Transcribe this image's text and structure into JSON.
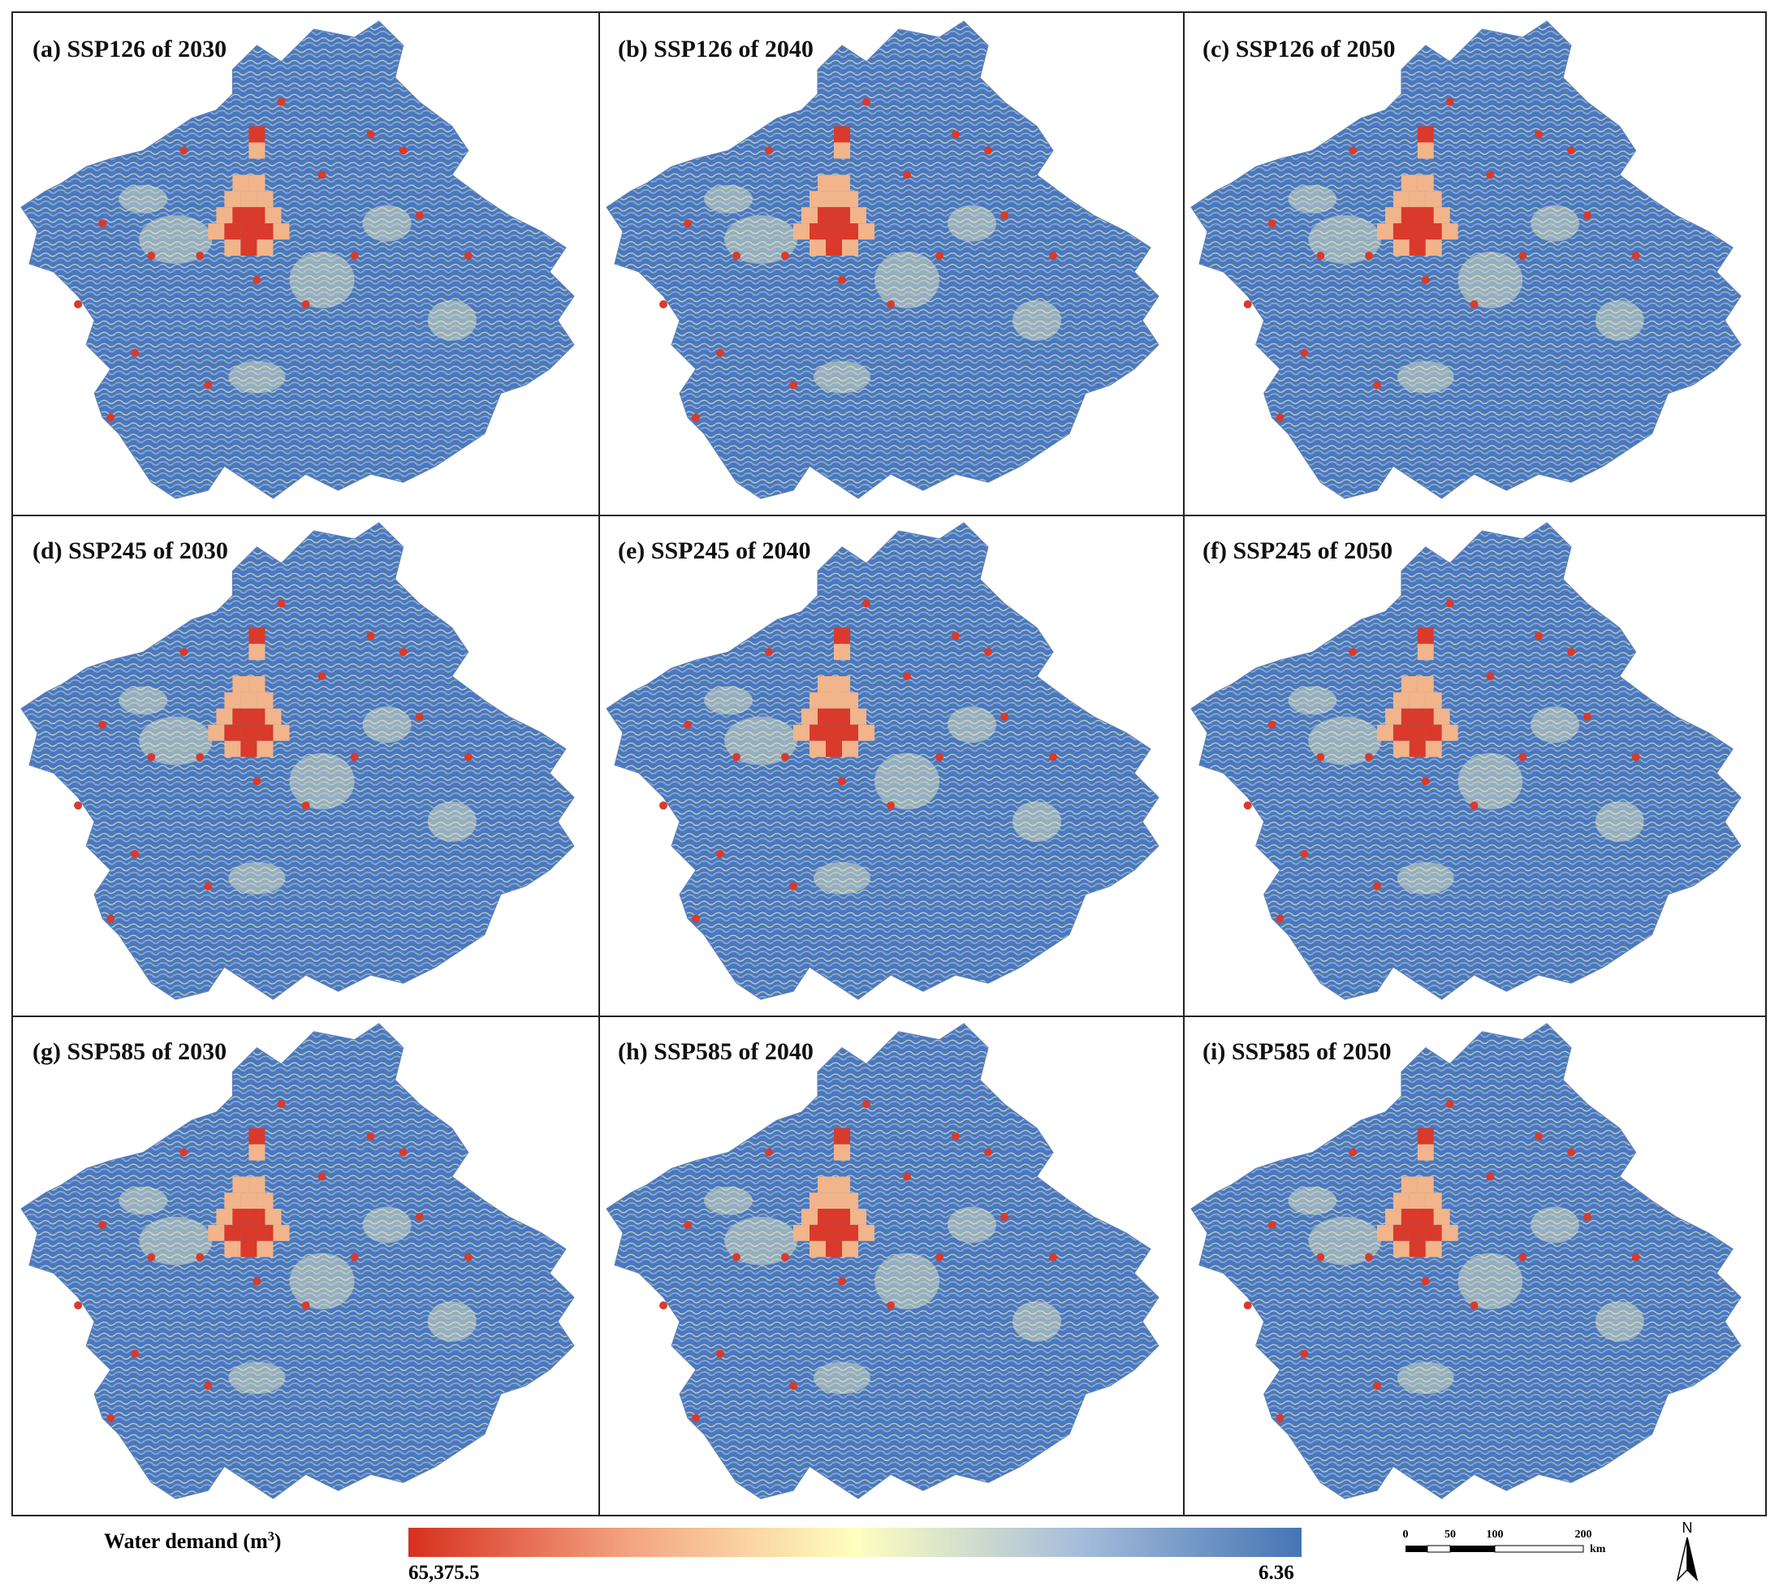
{
  "panels": [
    {
      "label": "(a) SSP126 of 2030"
    },
    {
      "label": "(b) SSP126 of 2040"
    },
    {
      "label": "(c) SSP126 of 2050"
    },
    {
      "label": "(d) SSP245 of 2030"
    },
    {
      "label": "(e) SSP245 of 2040"
    },
    {
      "label": "(f) SSP245 of 2050"
    },
    {
      "label": "(g) SSP585 of 2030"
    },
    {
      "label": "(h) SSP585 of 2040"
    },
    {
      "label": "(i) SSP585 of 2050"
    }
  ],
  "legend": {
    "title": "Water demand (m",
    "title_sup": "3",
    "title_end": ")",
    "max_label": "65,375.5",
    "min_label": "6.36",
    "colors": [
      "#d7301f",
      "#f4a582",
      "#ffffbf",
      "#a6bddb",
      "#4575b4"
    ]
  },
  "scale_bar": {
    "ticks": [
      "0",
      "50",
      "100",
      "200"
    ],
    "unit": "km"
  },
  "north_arrow": {
    "label": "N",
    "icon": "north-arrow-icon"
  },
  "colors": {
    "low": "#4a78bf",
    "mid_low": "#9fb9d6",
    "mid": "#f1f0c0",
    "high": "#f2b48a",
    "peak": "#d93a2b"
  }
}
